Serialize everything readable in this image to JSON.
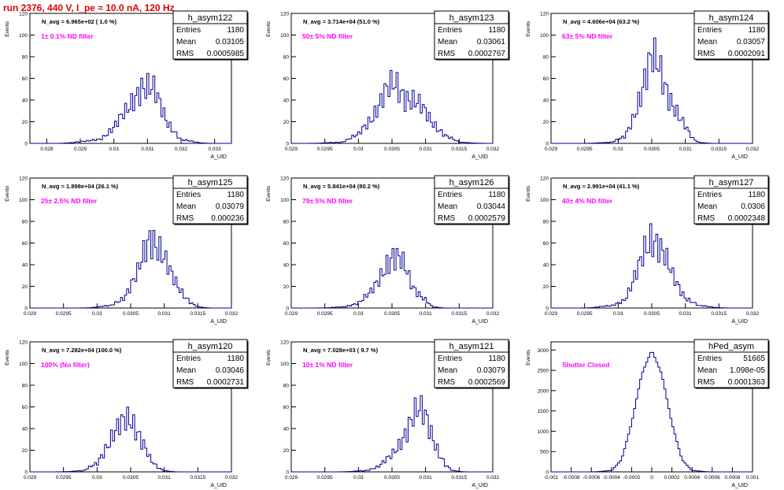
{
  "page": {
    "run_title": "run 2376,   440 V, I_pe ≈ 10.0 nA, 120 Hz"
  },
  "colors": {
    "histogram": "#000099",
    "filter_label": "#ff00ff",
    "run_title": "#e00000",
    "axis": "#000000"
  },
  "chart_data": [
    {
      "type": "histogram",
      "name": "h_asym122",
      "xlabel": "A_UID",
      "ylabel": "Events",
      "xlim": [
        0.0275,
        0.0335
      ],
      "ylim": [
        0,
        120
      ],
      "xticks": [
        "0.028",
        "0.029",
        "0.03",
        "0.031",
        "0.032",
        "0.033"
      ],
      "xtick_values": [
        0.028,
        0.029,
        0.03,
        0.031,
        0.032,
        0.033
      ],
      "yticks": [
        "0",
        "20",
        "40",
        "60",
        "80",
        "100",
        "120"
      ],
      "ytick_values": [
        0,
        20,
        40,
        60,
        80,
        100,
        120
      ],
      "nbins": 100,
      "bin_centers": [
        0.0292,
        0.0296,
        0.03,
        0.0304,
        0.0308,
        0.0312,
        0.0316,
        0.032
      ],
      "bin_counts": [
        2,
        4,
        15,
        30,
        55,
        47,
        20,
        3
      ],
      "curve": "rough",
      "stats": {
        "Entries": "1180",
        "Mean": "0.03105",
        "RMS": "0.0005985"
      },
      "nav_text": "N_avg = 6.965e+02 ( 1.0 %)",
      "filter_text": "1± 0.1% ND filter"
    },
    {
      "type": "histogram",
      "name": "h_asym123",
      "xlabel": "A_UID",
      "ylabel": "Events",
      "xlim": [
        0.029,
        0.032
      ],
      "ylim": [
        0,
        120
      ],
      "xticks": [
        "0.029",
        "0.0295",
        "0.03",
        "0.0305",
        "0.031",
        "0.0315",
        "0.032"
      ],
      "xtick_values": [
        0.029,
        0.0295,
        0.03,
        0.0305,
        0.031,
        0.0315,
        0.032
      ],
      "yticks": [
        "0",
        "20",
        "40",
        "60",
        "80",
        "100",
        "120"
      ],
      "ytick_values": [
        0,
        20,
        40,
        60,
        80,
        100,
        120
      ],
      "nbins": 100,
      "bin_centers": [
        0.02975,
        0.03,
        0.0302,
        0.0304,
        0.03055,
        0.0307,
        0.0309,
        0.0311,
        0.0313,
        0.0315
      ],
      "bin_counts": [
        1,
        8,
        25,
        45,
        55,
        45,
        35,
        20,
        7,
        1
      ],
      "curve": "rough",
      "stats": {
        "Entries": "1180",
        "Mean": "0.03061",
        "RMS": "0.0002767"
      },
      "nav_text": "N_avg = 3.714e+04 (51.0 %)",
      "filter_text": "50± 5% ND filter"
    },
    {
      "type": "histogram",
      "name": "h_asym124",
      "xlabel": "A_UID",
      "ylabel": "Events",
      "xlim": [
        0.029,
        0.032
      ],
      "ylim": [
        0,
        120
      ],
      "xticks": [
        "0.029",
        "0.0295",
        "0.03",
        "0.0305",
        "0.031",
        "0.0315",
        "0.032"
      ],
      "xtick_values": [
        0.029,
        0.0295,
        0.03,
        0.0305,
        0.031,
        0.0315,
        0.032
      ],
      "yticks": [
        "0",
        "20",
        "40",
        "60",
        "80",
        "100",
        "120"
      ],
      "ytick_values": [
        0,
        20,
        40,
        60,
        80,
        100,
        120
      ],
      "nbins": 100,
      "bin_centers": [
        0.0299,
        0.0301,
        0.0302,
        0.0303,
        0.0304,
        0.0305,
        0.0306,
        0.0307,
        0.0308,
        0.0309,
        0.031,
        0.0311,
        0.0312
      ],
      "bin_counts": [
        1,
        6,
        20,
        40,
        60,
        75,
        70,
        55,
        40,
        25,
        15,
        5,
        1
      ],
      "curve": "rough",
      "stats": {
        "Entries": "1180",
        "Mean": "0.03057",
        "RMS": "0.0002091"
      },
      "nav_text": "N_avg = 4.606e+04 (63.2 %)",
      "filter_text": "63± 5% ND filter"
    },
    {
      "type": "histogram",
      "name": "h_asym125",
      "xlabel": "A_UID",
      "ylabel": "Events",
      "xlim": [
        0.029,
        0.032
      ],
      "ylim": [
        0,
        120
      ],
      "xticks": [
        "0.029",
        "0.0295",
        "0.03",
        "0.0305",
        "0.031",
        "0.0315",
        "0.032"
      ],
      "xtick_values": [
        0.029,
        0.0295,
        0.03,
        0.0305,
        0.031,
        0.0315,
        0.032
      ],
      "yticks": [
        "0",
        "20",
        "40",
        "60",
        "80",
        "100",
        "120"
      ],
      "ytick_values": [
        0,
        20,
        40,
        60,
        80,
        100,
        120
      ],
      "nbins": 100,
      "bin_centers": [
        0.0302,
        0.0304,
        0.0306,
        0.0307,
        0.0308,
        0.0309,
        0.031,
        0.0311,
        0.0312,
        0.0313,
        0.0314,
        0.0315
      ],
      "bin_counts": [
        2,
        10,
        30,
        50,
        70,
        60,
        45,
        30,
        20,
        12,
        5,
        1
      ],
      "curve": "rough",
      "stats": {
        "Entries": "1180",
        "Mean": "0.03079",
        "RMS": "0.000236"
      },
      "nav_text": "N_avg = 1.898e+04 (26.1 %)",
      "filter_text": "25± 2.5% ND filter"
    },
    {
      "type": "histogram",
      "name": "h_asym126",
      "xlabel": "A_UID",
      "ylabel": "Events",
      "xlim": [
        0.029,
        0.032
      ],
      "ylim": [
        0,
        120
      ],
      "xticks": [
        "0.029",
        "0.0295",
        "0.03",
        "0.0305",
        "0.031",
        "0.0315",
        "0.032"
      ],
      "xtick_values": [
        0.029,
        0.0295,
        0.03,
        0.0305,
        0.031,
        0.0315,
        0.032
      ],
      "yticks": [
        "0",
        "20",
        "40",
        "60",
        "80",
        "100",
        "120"
      ],
      "ytick_values": [
        0,
        20,
        40,
        60,
        80,
        100,
        120
      ],
      "nbins": 100,
      "bin_centers": [
        0.0298,
        0.03,
        0.0302,
        0.0303,
        0.0304,
        0.0305,
        0.0306,
        0.0307,
        0.0308,
        0.031,
        0.0311
      ],
      "bin_counts": [
        1,
        5,
        15,
        25,
        40,
        50,
        45,
        35,
        20,
        8,
        1
      ],
      "curve": "rough",
      "stats": {
        "Entries": "1180",
        "Mean": "0.03044",
        "RMS": "0.0002579"
      },
      "nav_text": "N_avg = 5.841e+04 (80.2 %)",
      "filter_text": "79± 5% ND filter"
    },
    {
      "type": "histogram",
      "name": "h_asym127",
      "xlabel": "A_UID",
      "ylabel": "Events",
      "xlim": [
        0.029,
        0.032
      ],
      "ylim": [
        0,
        120
      ],
      "xticks": [
        "0.029",
        "0.0295",
        "0.03",
        "0.0305",
        "0.031",
        "0.0315",
        "0.032"
      ],
      "xtick_values": [
        0.029,
        0.0295,
        0.03,
        0.0305,
        0.031,
        0.0315,
        0.032
      ],
      "yticks": [
        "0",
        "20",
        "40",
        "60",
        "80",
        "100",
        "120"
      ],
      "ytick_values": [
        0,
        20,
        40,
        60,
        80,
        100,
        120
      ],
      "nbins": 100,
      "bin_centers": [
        0.0299,
        0.0301,
        0.0302,
        0.0303,
        0.0304,
        0.0305,
        0.0306,
        0.0307,
        0.0308,
        0.0309,
        0.031,
        0.0312
      ],
      "bin_counts": [
        2,
        8,
        20,
        35,
        55,
        70,
        60,
        45,
        30,
        20,
        10,
        2
      ],
      "curve": "rough",
      "stats": {
        "Entries": "1180",
        "Mean": "0.0306",
        "RMS": "0.0002348"
      },
      "nav_text": "N_avg = 2.991e+04 (41.1 %)",
      "filter_text": "40± 4% ND filter"
    },
    {
      "type": "histogram",
      "name": "h_asym120",
      "xlabel": "A_UID",
      "ylabel": "Events",
      "xlim": [
        0.029,
        0.032
      ],
      "ylim": [
        0,
        120
      ],
      "xticks": [
        "0.029",
        "0.0295",
        "0.03",
        "0.0305",
        "0.031",
        "0.0315",
        "0.032"
      ],
      "xtick_values": [
        0.029,
        0.0295,
        0.03,
        0.0305,
        0.031,
        0.0315,
        0.032
      ],
      "yticks": [
        "0",
        "20",
        "40",
        "60",
        "80",
        "100",
        "120"
      ],
      "ytick_values": [
        0,
        20,
        40,
        60,
        80,
        100,
        120
      ],
      "nbins": 100,
      "bin_centers": [
        0.0298,
        0.03,
        0.0301,
        0.0302,
        0.0303,
        0.0304,
        0.0305,
        0.0306,
        0.0307,
        0.0308,
        0.0309,
        0.031
      ],
      "bin_counts": [
        1,
        8,
        20,
        30,
        38,
        45,
        50,
        40,
        25,
        10,
        4,
        1
      ],
      "curve": "rough",
      "stats": {
        "Entries": "1180",
        "Mean": "0.03046",
        "RMS": "0.0002731"
      },
      "nav_text": "N_avg = 7.282e+04 (100.0 %)",
      "filter_text": "100% (No filter)"
    },
    {
      "type": "histogram",
      "name": "h_asym121",
      "xlabel": "A_UID",
      "ylabel": "Events",
      "xlim": [
        0.029,
        0.032
      ],
      "ylim": [
        0,
        120
      ],
      "xticks": [
        "0.029",
        "0.0295",
        "0.03",
        "0.0305",
        "0.031",
        "0.0315",
        "0.032"
      ],
      "xtick_values": [
        0.029,
        0.0295,
        0.03,
        0.0305,
        0.031,
        0.0315,
        0.032
      ],
      "yticks": [
        "0",
        "20",
        "40",
        "60",
        "80",
        "100",
        "120"
      ],
      "ytick_values": [
        0,
        20,
        40,
        60,
        80,
        100,
        120
      ],
      "nbins": 100,
      "bin_centers": [
        0.0301,
        0.0303,
        0.0305,
        0.0306,
        0.0307,
        0.0308,
        0.0309,
        0.031,
        0.0311,
        0.0312,
        0.0313,
        0.0314
      ],
      "bin_counts": [
        1,
        5,
        15,
        25,
        38,
        50,
        55,
        50,
        35,
        18,
        6,
        1
      ],
      "curve": "rough",
      "stats": {
        "Entries": "1180",
        "Mean": "0.03079",
        "RMS": "0.0002569"
      },
      "nav_text": "N_avg = 7.028e+03 ( 9.7 %)",
      "filter_text": "10± 1% ND filter"
    },
    {
      "type": "histogram",
      "name": "hPed_asym",
      "xlabel": "A_UID",
      "ylabel": "Events",
      "xlim": [
        -0.001,
        0.001
      ],
      "ylim": [
        0,
        3200
      ],
      "xticks": [
        "-0.001",
        "-0.0008",
        "-0.0006",
        "-0.0004",
        "-0.0002",
        "0",
        "0.0002",
        "0.0004",
        "0.0006",
        "0.0008",
        "0.001"
      ],
      "xtick_values": [
        -0.001,
        -0.0008,
        -0.0006,
        -0.0004,
        -0.0002,
        0,
        0.0002,
        0.0004,
        0.0006,
        0.0008,
        0.001
      ],
      "yticks": [
        "0",
        "500",
        "1000",
        "1500",
        "2000",
        "2500",
        "3000"
      ],
      "ytick_values": [
        0,
        500,
        1000,
        1500,
        2000,
        2500,
        3000
      ],
      "nbins": 100,
      "bin_centers": [
        -0.0004,
        -0.0003,
        -0.0002,
        -0.0001,
        0,
        0.0001,
        0.0002,
        0.0003,
        0.0004
      ],
      "bin_counts": [
        30,
        300,
        1200,
        2400,
        3000,
        2400,
        1200,
        300,
        30
      ],
      "curve": "smooth",
      "stats": {
        "Entries": "51665",
        "Mean": "1.098e-05",
        "RMS": "0.0001363"
      },
      "nav_text": "",
      "filter_text": "Shutter Closed"
    }
  ]
}
